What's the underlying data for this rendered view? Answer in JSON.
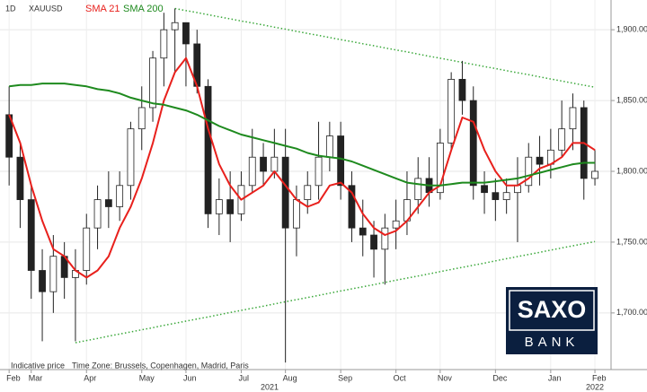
{
  "chart_data": {
    "type": "candlestick",
    "interval": "1D",
    "symbol": "XAUUSD",
    "categories": [
      "Feb",
      null,
      "Mar",
      null,
      null,
      null,
      null,
      "Apr",
      null,
      null,
      null,
      null,
      "May",
      null,
      null,
      null,
      "Jun",
      null,
      null,
      null,
      null,
      "Jul",
      null,
      null,
      null,
      "Aug",
      null,
      null,
      null,
      null,
      "Sep",
      null,
      null,
      null,
      null,
      "Oct",
      null,
      null,
      null,
      "Nov",
      null,
      null,
      null,
      null,
      "Dec",
      null,
      null,
      null,
      null,
      "Jan",
      null,
      null,
      null,
      "Feb"
    ],
    "open": [
      1840,
      1810,
      1780,
      1730,
      1715,
      1740,
      1725,
      1730,
      1760,
      1780,
      1775,
      1790,
      1830,
      1845,
      1880,
      1900,
      1905,
      1890,
      1860,
      1770,
      1780,
      1770,
      1790,
      1810,
      1800,
      1810,
      1760,
      1780,
      1790,
      1810,
      1825,
      1790,
      1760,
      1755,
      1745,
      1760,
      1765,
      1780,
      1795,
      1785,
      1820,
      1865,
      1850,
      1790,
      1785,
      1780,
      1785,
      1790,
      1810,
      1805,
      1815,
      1830,
      1845,
      1795
    ],
    "high": [
      1860,
      1820,
      1790,
      1745,
      1755,
      1750,
      1745,
      1770,
      1790,
      1800,
      1800,
      1835,
      1860,
      1885,
      1912,
      1915,
      1905,
      1900,
      1865,
      1795,
      1800,
      1800,
      1830,
      1820,
      1830,
      1830,
      1790,
      1800,
      1835,
      1835,
      1835,
      1800,
      1780,
      1765,
      1770,
      1780,
      1800,
      1810,
      1810,
      1830,
      1870,
      1878,
      1860,
      1800,
      1795,
      1795,
      1810,
      1820,
      1825,
      1830,
      1850,
      1855,
      1850,
      1815
    ],
    "low": [
      1790,
      1760,
      1710,
      1680,
      1700,
      1710,
      1680,
      1720,
      1745,
      1760,
      1765,
      1780,
      1815,
      1835,
      1860,
      1870,
      1860,
      1855,
      1760,
      1755,
      1750,
      1765,
      1785,
      1790,
      1795,
      1665,
      1740,
      1770,
      1780,
      1800,
      1780,
      1750,
      1740,
      1725,
      1720,
      1745,
      1755,
      1770,
      1775,
      1780,
      1815,
      1840,
      1780,
      1770,
      1765,
      1770,
      1750,
      1785,
      1790,
      1795,
      1810,
      1815,
      1780,
      1790
    ],
    "close": [
      1810,
      1780,
      1730,
      1715,
      1740,
      1725,
      1730,
      1760,
      1780,
      1775,
      1790,
      1830,
      1845,
      1880,
      1900,
      1905,
      1890,
      1860,
      1770,
      1780,
      1770,
      1790,
      1810,
      1800,
      1810,
      1760,
      1780,
      1790,
      1810,
      1825,
      1790,
      1760,
      1755,
      1745,
      1760,
      1765,
      1780,
      1795,
      1785,
      1820,
      1865,
      1850,
      1790,
      1785,
      1780,
      1785,
      1790,
      1810,
      1805,
      1815,
      1830,
      1845,
      1795,
      1800
    ],
    "up_color": "#ffffff",
    "down_color": "#222222",
    "overlays": [
      {
        "name": "SMA 21",
        "color": "#e8201c",
        "values": [
          1840,
          1820,
          1790,
          1765,
          1745,
          1740,
          1730,
          1725,
          1730,
          1740,
          1760,
          1775,
          1795,
          1820,
          1850,
          1870,
          1880,
          1860,
          1830,
          1805,
          1790,
          1780,
          1785,
          1790,
          1800,
          1790,
          1780,
          1775,
          1778,
          1790,
          1792,
          1785,
          1770,
          1760,
          1755,
          1758,
          1765,
          1775,
          1785,
          1790,
          1815,
          1838,
          1835,
          1815,
          1800,
          1790,
          1790,
          1795,
          1802,
          1805,
          1810,
          1820,
          1820,
          1815
        ]
      },
      {
        "name": "SMA 200",
        "color": "#1e8a1e",
        "values": [
          1860,
          1861,
          1861,
          1862,
          1862,
          1862,
          1861,
          1860,
          1858,
          1857,
          1855,
          1852,
          1850,
          1848,
          1847,
          1845,
          1843,
          1840,
          1836,
          1832,
          1829,
          1826,
          1824,
          1822,
          1820,
          1818,
          1816,
          1813,
          1811,
          1810,
          1809,
          1807,
          1804,
          1801,
          1798,
          1795,
          1792,
          1791,
          1790,
          1790,
          1791,
          1792,
          1792,
          1792,
          1793,
          1794,
          1795,
          1797,
          1799,
          1801,
          1803,
          1805,
          1806,
          1806
        ]
      }
    ],
    "trend_lines": [
      {
        "color": "#3aa83a",
        "values": [
          null,
          null,
          null,
          null,
          null,
          null,
          null,
          null,
          null,
          null,
          null,
          null,
          null,
          null,
          null,
          1915.0,
          1913.5,
          1912.1,
          1910.6,
          1909.1,
          1907.7,
          1906.2,
          1904.8,
          1903.3,
          1901.8,
          1900.4,
          1898.9,
          1897.4,
          1896.0,
          1894.5,
          1893.0,
          1891.6,
          1890.1,
          1888.7,
          1887.2,
          1885.7,
          1884.3,
          1882.8,
          1881.3,
          1879.9,
          1878.4,
          1876.9,
          1875.5,
          1874.0,
          1872.6,
          1871.1,
          1869.6,
          1868.2,
          1866.7,
          1865.2,
          1863.8,
          1862.3,
          1860.8,
          1859.4
        ]
      },
      {
        "color": "#3aa83a",
        "values": [
          null,
          null,
          null,
          null,
          null,
          null,
          1679.0,
          1680.5,
          1682.0,
          1683.6,
          1685.1,
          1686.6,
          1688.1,
          1689.6,
          1691.2,
          1692.7,
          1694.2,
          1695.7,
          1697.2,
          1698.8,
          1700.3,
          1701.8,
          1703.3,
          1704.8,
          1706.4,
          1707.9,
          1709.4,
          1710.9,
          1712.4,
          1714.0,
          1715.5,
          1717.0,
          1718.5,
          1720.0,
          1721.6,
          1723.1,
          1724.6,
          1726.1,
          1727.6,
          1729.2,
          1730.7,
          1732.2,
          1733.7,
          1735.2,
          1736.8,
          1738.3,
          1739.8,
          1741.3,
          1742.8,
          1744.4,
          1745.9,
          1747.4,
          1748.9,
          1750.4
        ]
      }
    ],
    "ylim": [
      1660,
      1921
    ],
    "yticks": [
      {
        "value": 1700,
        "label": "1,700.00"
      },
      {
        "value": 1750,
        "label": "1,750.00"
      },
      {
        "value": 1800,
        "label": "1,800.00"
      },
      {
        "value": 1850,
        "label": "1,850.00"
      },
      {
        "value": 1900,
        "label": "1,900.00"
      }
    ],
    "grid": true,
    "year_labels": [
      "2021",
      "2022"
    ],
    "footnotes": [
      "Indicative price",
      "Time Zone: Brussels, Copenhagen, Madrid, Paris"
    ],
    "logo": {
      "top": "SAXO",
      "bottom": "BANK"
    }
  }
}
